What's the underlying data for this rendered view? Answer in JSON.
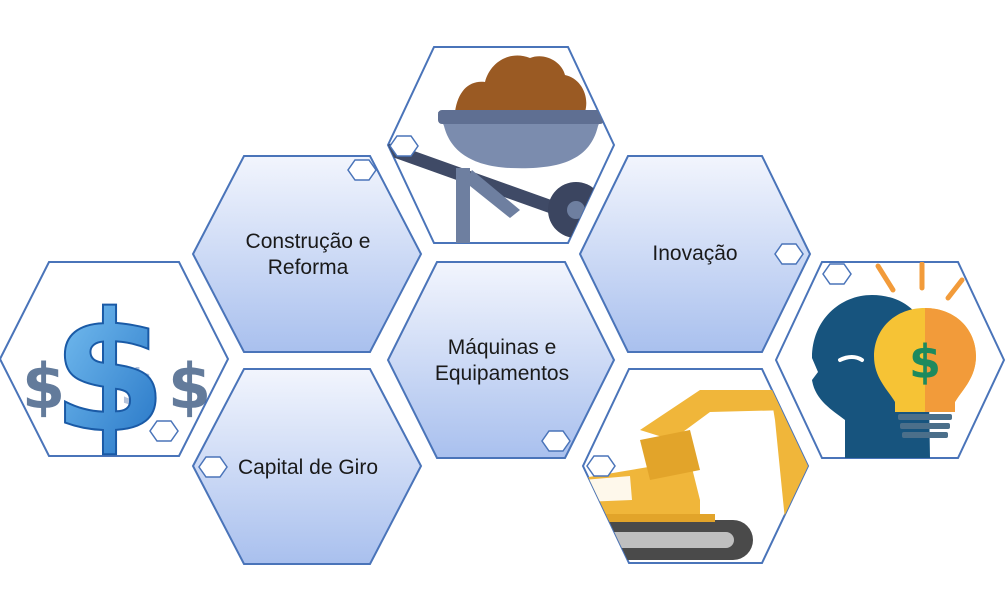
{
  "diagram": {
    "nodes": [
      {
        "id": "capital",
        "label_lines": [
          "Capital de Giro"
        ],
        "kind": "text"
      },
      {
        "id": "construcao",
        "label_lines": [
          "Construção e",
          "Reforma"
        ],
        "kind": "text"
      },
      {
        "id": "maquinas",
        "label_lines": [
          "Máquinas e",
          "Equipamentos"
        ],
        "kind": "text"
      },
      {
        "id": "inovacao",
        "label_lines": [
          "Inovação"
        ],
        "kind": "text"
      },
      {
        "id": "dinheiro",
        "kind": "image",
        "icon": "dollar-sign-icon"
      },
      {
        "id": "carrinho",
        "kind": "image",
        "icon": "wheelbarrow-icon"
      },
      {
        "id": "escavadeira",
        "kind": "image",
        "icon": "excavator-icon"
      },
      {
        "id": "ideia",
        "kind": "image",
        "icon": "idea-head-bulb-icon"
      }
    ],
    "colors": {
      "hex_fill_top": "#f2f5fd",
      "hex_fill_bottom": "#a9c0ee",
      "hex_stroke": "#4a74b9",
      "dollar_blue": "#3d8fd8",
      "dirt": "#9a5a23",
      "wheelbarrow": "#6e7fa0",
      "excavator": "#f0b63a",
      "track": "#4a4a4a",
      "head": "#17547e",
      "bulb_left": "#f6c335",
      "bulb_right": "#f29b3a",
      "money_green": "#1d8a5e"
    }
  }
}
